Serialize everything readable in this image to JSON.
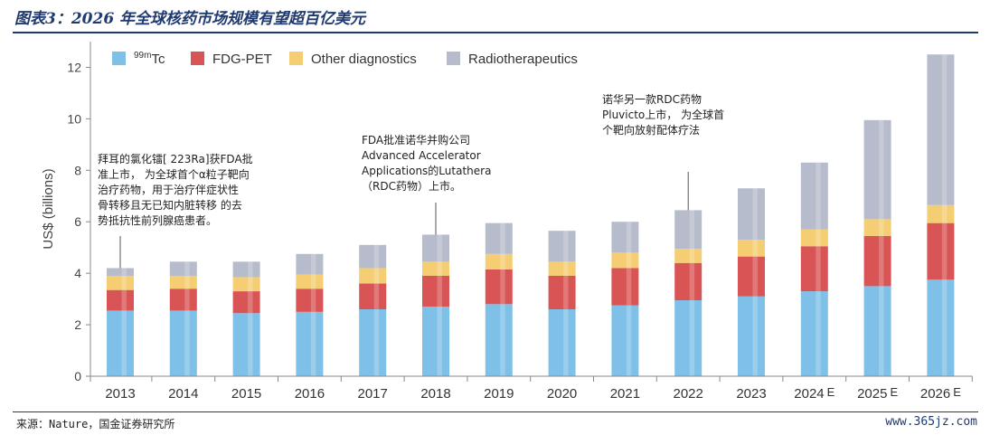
{
  "figure_title": "图表3：2026 年全球核药市场规模有望超百亿美元",
  "source": "来源：Nature，国金证券研究所",
  "watermark": "www.365jz.com",
  "chart_data": {
    "type": "bar",
    "stacked": true,
    "ylabel": "US$ (billions)",
    "xlabel": "",
    "ylim": [
      0,
      13
    ],
    "yticks": [
      0,
      2,
      4,
      6,
      8,
      10,
      12
    ],
    "grid": false,
    "legend_position": "top-left",
    "categories": [
      "2013",
      "2014",
      "2015",
      "2016",
      "2017",
      "2018",
      "2019",
      "2020",
      "2021",
      "2022",
      "2023",
      "2024",
      "2025",
      "2026"
    ],
    "category_suffixes": [
      "",
      "",
      "",
      "",
      "",
      "",
      "",
      "",
      "",
      "",
      "",
      "E",
      "E",
      "E"
    ],
    "series": [
      {
        "name": "99mTc",
        "name_base": "Tc",
        "name_sup": "99m",
        "color": "#7fc0e8",
        "values": [
          2.55,
          2.55,
          2.45,
          2.5,
          2.6,
          2.7,
          2.8,
          2.6,
          2.75,
          2.95,
          3.1,
          3.3,
          3.5,
          3.75
        ]
      },
      {
        "name": "FDG-PET",
        "color": "#d95454",
        "values": [
          0.8,
          0.85,
          0.85,
          0.9,
          1.0,
          1.2,
          1.35,
          1.3,
          1.45,
          1.45,
          1.55,
          1.75,
          1.95,
          2.2
        ]
      },
      {
        "name": "Other diagnostics",
        "color": "#f5cd72",
        "values": [
          0.55,
          0.5,
          0.55,
          0.55,
          0.6,
          0.55,
          0.6,
          0.55,
          0.6,
          0.55,
          0.65,
          0.65,
          0.65,
          0.7
        ]
      },
      {
        "name": "Radiotherapeutics",
        "color": "#b6bccb",
        "values": [
          0.3,
          0.55,
          0.6,
          0.8,
          0.9,
          1.05,
          1.2,
          1.2,
          1.2,
          1.5,
          2.0,
          2.6,
          3.85,
          5.85
        ]
      }
    ],
    "annotations": [
      {
        "category": "2013",
        "text": [
          "拜耳的氯化镭[ 223Ra]获FDA批",
          "准上市， 为全球首个α粒子靶向",
          "治疗药物，用于治疗伴症状性",
          "骨转移且无已知内脏转移 的去",
          "势抵抗性前列腺癌患者。"
        ]
      },
      {
        "category": "2018",
        "text": [
          "FDA批准诺华并购公司",
          "Advanced Accelerator",
          "Applications的Lutathera",
          "（RDC药物）上市。"
        ]
      },
      {
        "category": "2022",
        "text": [
          "诺华另一款RDC药物",
          "Pluvicto上市， 为全球首",
          "个靶向放射配体疗法"
        ]
      }
    ]
  }
}
